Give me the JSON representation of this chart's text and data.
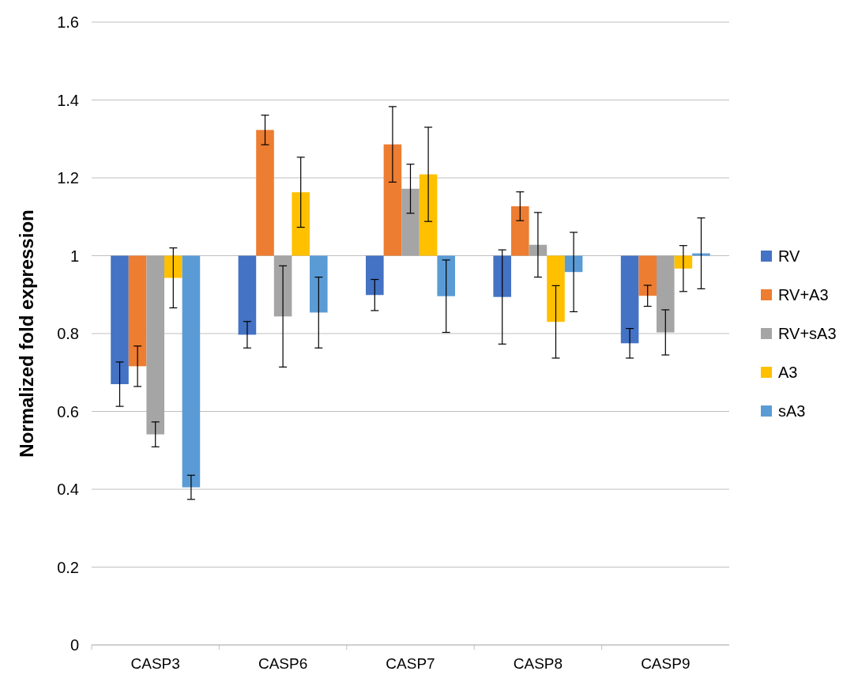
{
  "chart_data": {
    "type": "bar",
    "ylabel": "Normalized fold expression",
    "categories": [
      "CASP3",
      "CASP6",
      "CASP7",
      "CASP8",
      "CASP9"
    ],
    "series": [
      {
        "name": "RV",
        "color": "#4472c4",
        "base": [
          1,
          1,
          1,
          1,
          1
        ],
        "values": [
          -0.33,
          -0.203,
          -0.101,
          -0.106,
          -0.225
        ],
        "errors": [
          0.057,
          0.034,
          0.04,
          0.121,
          0.038
        ]
      },
      {
        "name": "RV+A3",
        "color": "#ed7d31",
        "base": [
          1,
          1,
          1,
          1,
          1
        ],
        "values": [
          -0.284,
          0.323,
          0.286,
          0.127,
          -0.103
        ],
        "errors": [
          0.052,
          0.038,
          0.097,
          0.037,
          0.027
        ]
      },
      {
        "name": "RV+sA3",
        "color": "#a5a5a5",
        "base": [
          1,
          1,
          1,
          1,
          1
        ],
        "values": [
          -0.459,
          -0.156,
          0.172,
          0.028,
          -0.197
        ],
        "errors": [
          0.032,
          0.13,
          0.063,
          0.083,
          0.058
        ]
      },
      {
        "name": "A3",
        "color": "#ffc000",
        "base": [
          1,
          1,
          1,
          1,
          1
        ],
        "values": [
          -0.057,
          0.163,
          0.209,
          -0.17,
          -0.033
        ],
        "errors": [
          0.077,
          0.09,
          0.121,
          0.093,
          0.059
        ]
      },
      {
        "name": "sA3",
        "color": "#5b9bd5",
        "base": [
          1,
          1,
          1,
          1,
          1
        ],
        "values": [
          -0.595,
          -0.146,
          -0.104,
          -0.042,
          0.006
        ],
        "errors": [
          0.031,
          0.091,
          0.093,
          0.102,
          0.091
        ]
      }
    ],
    "ylim": [
      0,
      1.6
    ],
    "yticks": [
      0,
      0.2,
      0.4,
      0.6,
      0.8,
      1,
      1.2,
      1.4,
      1.6
    ],
    "grid": "y",
    "legend": "right"
  }
}
